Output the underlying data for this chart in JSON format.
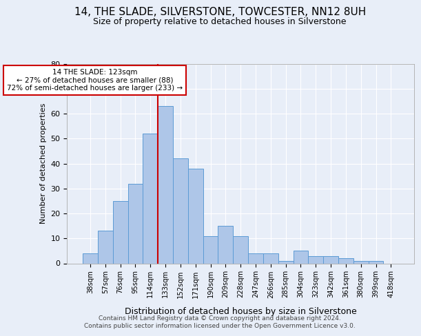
{
  "title": "14, THE SLADE, SILVERSTONE, TOWCESTER, NN12 8UH",
  "subtitle": "Size of property relative to detached houses in Silverstone",
  "xlabel": "Distribution of detached houses by size in Silverstone",
  "ylabel": "Number of detached properties",
  "bar_labels": [
    "38sqm",
    "57sqm",
    "76sqm",
    "95sqm",
    "114sqm",
    "133sqm",
    "152sqm",
    "171sqm",
    "190sqm",
    "209sqm",
    "228sqm",
    "247sqm",
    "266sqm",
    "285sqm",
    "304sqm",
    "323sqm",
    "342sqm",
    "361sqm",
    "380sqm",
    "399sqm",
    "418sqm"
  ],
  "bar_values": [
    4,
    13,
    25,
    32,
    52,
    63,
    42,
    38,
    11,
    15,
    11,
    4,
    4,
    1,
    5,
    3,
    3,
    2,
    1,
    1,
    0
  ],
  "bar_color": "#aec6e8",
  "bar_edge_color": "#5b9bd5",
  "vline_x": 4.5,
  "vline_color": "#cc0000",
  "annotation_text": "14 THE SLADE: 123sqm\n← 27% of detached houses are smaller (88)\n72% of semi-detached houses are larger (233) →",
  "annotation_box_color": "#ffffff",
  "annotation_box_edge": "#cc0000",
  "ylim": [
    0,
    80
  ],
  "yticks": [
    0,
    10,
    20,
    30,
    40,
    50,
    60,
    70,
    80
  ],
  "footer_line1": "Contains HM Land Registry data © Crown copyright and database right 2024.",
  "footer_line2": "Contains public sector information licensed under the Open Government Licence v3.0.",
  "background_color": "#e8eef8",
  "plot_background": "#e8eef8"
}
